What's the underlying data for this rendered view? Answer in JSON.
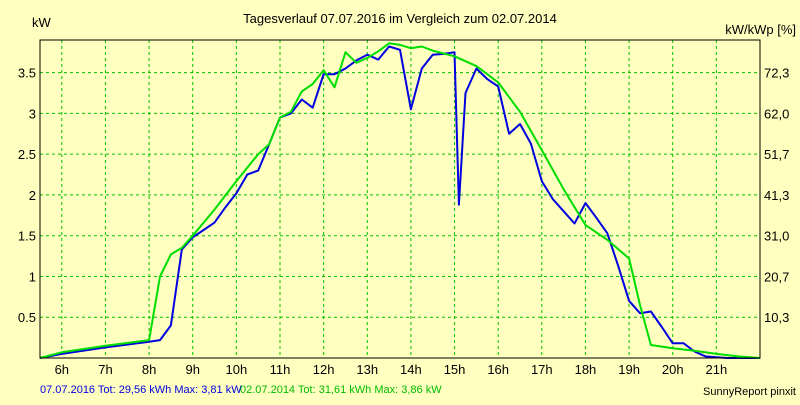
{
  "colors": {
    "background": "#ffffc0",
    "plot_background": "#ffffc0",
    "grid": "#00c000",
    "series_2016": "#0000e0",
    "series_2014": "#00dd00",
    "text": "#000000",
    "footer_2016": "#0000e0",
    "footer_2014": "#00bb00"
  },
  "chart_data": {
    "type": "line",
    "title": "Tagesverlauf 07.07.2016 im Vergleich zum 02.07.2014",
    "ylabel": "kW",
    "y2label": "kW/kWp [%]",
    "xlim": [
      5.5,
      22.0
    ],
    "ylim": [
      0,
      3.9
    ],
    "grid": true,
    "x_ticks": [
      6,
      7,
      8,
      9,
      10,
      11,
      12,
      13,
      14,
      15,
      16,
      17,
      18,
      19,
      20,
      21
    ],
    "x_tick_labels": [
      "6h",
      "7h",
      "8h",
      "9h",
      "10h",
      "11h",
      "12h",
      "13h",
      "14h",
      "15h",
      "16h",
      "17h",
      "18h",
      "19h",
      "20h",
      "21h"
    ],
    "y_ticks": [
      0.5,
      1,
      1.5,
      2,
      2.5,
      3,
      3.5
    ],
    "y_tick_labels": [
      "0.5",
      "1",
      "1.5",
      "2",
      "2.5",
      "3",
      "3.5"
    ],
    "y2_ticks": [
      0.5,
      1.0,
      1.5,
      2.0,
      2.5,
      3.0,
      3.5
    ],
    "y2_tick_labels": [
      "10,3",
      "20,7",
      "31,0",
      "41,3",
      "51,7",
      "62,0",
      "72,3"
    ],
    "series": [
      {
        "key": "s2016",
        "x": [
          5.5,
          6.0,
          7.0,
          8.0,
          8.25,
          8.5,
          8.75,
          9.0,
          9.25,
          9.5,
          9.75,
          10.0,
          10.25,
          10.5,
          10.75,
          11.0,
          11.25,
          11.5,
          11.75,
          12.0,
          12.25,
          12.5,
          12.75,
          13.0,
          13.25,
          13.5,
          13.75,
          14.0,
          14.25,
          14.5,
          14.75,
          15.0,
          15.1,
          15.25,
          15.5,
          15.75,
          16.0,
          16.25,
          16.5,
          16.75,
          17.0,
          17.25,
          17.5,
          17.75,
          18.0,
          18.25,
          18.5,
          18.75,
          19.0,
          19.25,
          19.5,
          19.75,
          20.0,
          20.25,
          20.5,
          20.75,
          21.0,
          21.25,
          21.5,
          22.0
        ],
        "values": [
          0.0,
          0.05,
          0.13,
          0.2,
          0.22,
          0.4,
          1.33,
          1.48,
          1.57,
          1.66,
          1.85,
          2.02,
          2.25,
          2.3,
          2.62,
          2.95,
          3.0,
          3.17,
          3.07,
          3.48,
          3.48,
          3.55,
          3.65,
          3.72,
          3.66,
          3.82,
          3.78,
          3.05,
          3.55,
          3.72,
          3.73,
          3.75,
          1.88,
          3.25,
          3.55,
          3.42,
          3.33,
          2.75,
          2.87,
          2.63,
          2.17,
          1.95,
          1.8,
          1.65,
          1.9,
          1.72,
          1.53,
          1.13,
          0.7,
          0.55,
          0.57,
          0.38,
          0.18,
          0.18,
          0.08,
          0.02,
          0.01,
          0.0,
          0.0,
          0.0
        ]
      },
      {
        "key": "s2014",
        "x": [
          5.5,
          6.0,
          7.0,
          8.0,
          8.25,
          8.5,
          8.75,
          9.0,
          9.5,
          10.0,
          10.5,
          10.75,
          11.0,
          11.25,
          11.5,
          11.75,
          12.0,
          12.25,
          12.5,
          12.75,
          13.0,
          13.25,
          13.5,
          13.75,
          14.0,
          14.25,
          14.5,
          15.0,
          15.5,
          16.0,
          16.5,
          17.0,
          17.5,
          18.0,
          18.5,
          19.0,
          19.25,
          19.5,
          20.0,
          20.5,
          21.0,
          21.5,
          22.0
        ],
        "values": [
          0.0,
          0.07,
          0.15,
          0.22,
          1.0,
          1.27,
          1.35,
          1.5,
          1.82,
          2.17,
          2.5,
          2.62,
          2.95,
          3.02,
          3.27,
          3.36,
          3.53,
          3.32,
          3.75,
          3.62,
          3.68,
          3.76,
          3.86,
          3.84,
          3.8,
          3.82,
          3.77,
          3.7,
          3.58,
          3.38,
          3.02,
          2.55,
          2.07,
          1.63,
          1.45,
          1.22,
          0.65,
          0.16,
          0.12,
          0.09,
          0.05,
          0.02,
          0.0
        ]
      }
    ]
  },
  "footer": {
    "stats_2016": "07.07.2016 Tot: 29,56 kWh Max: 3,81 kW",
    "stats_2014": "02.07.2014 Tot: 31,61 kWh Max: 3,86 kW",
    "credit": "SunnyReport pinxit"
  }
}
